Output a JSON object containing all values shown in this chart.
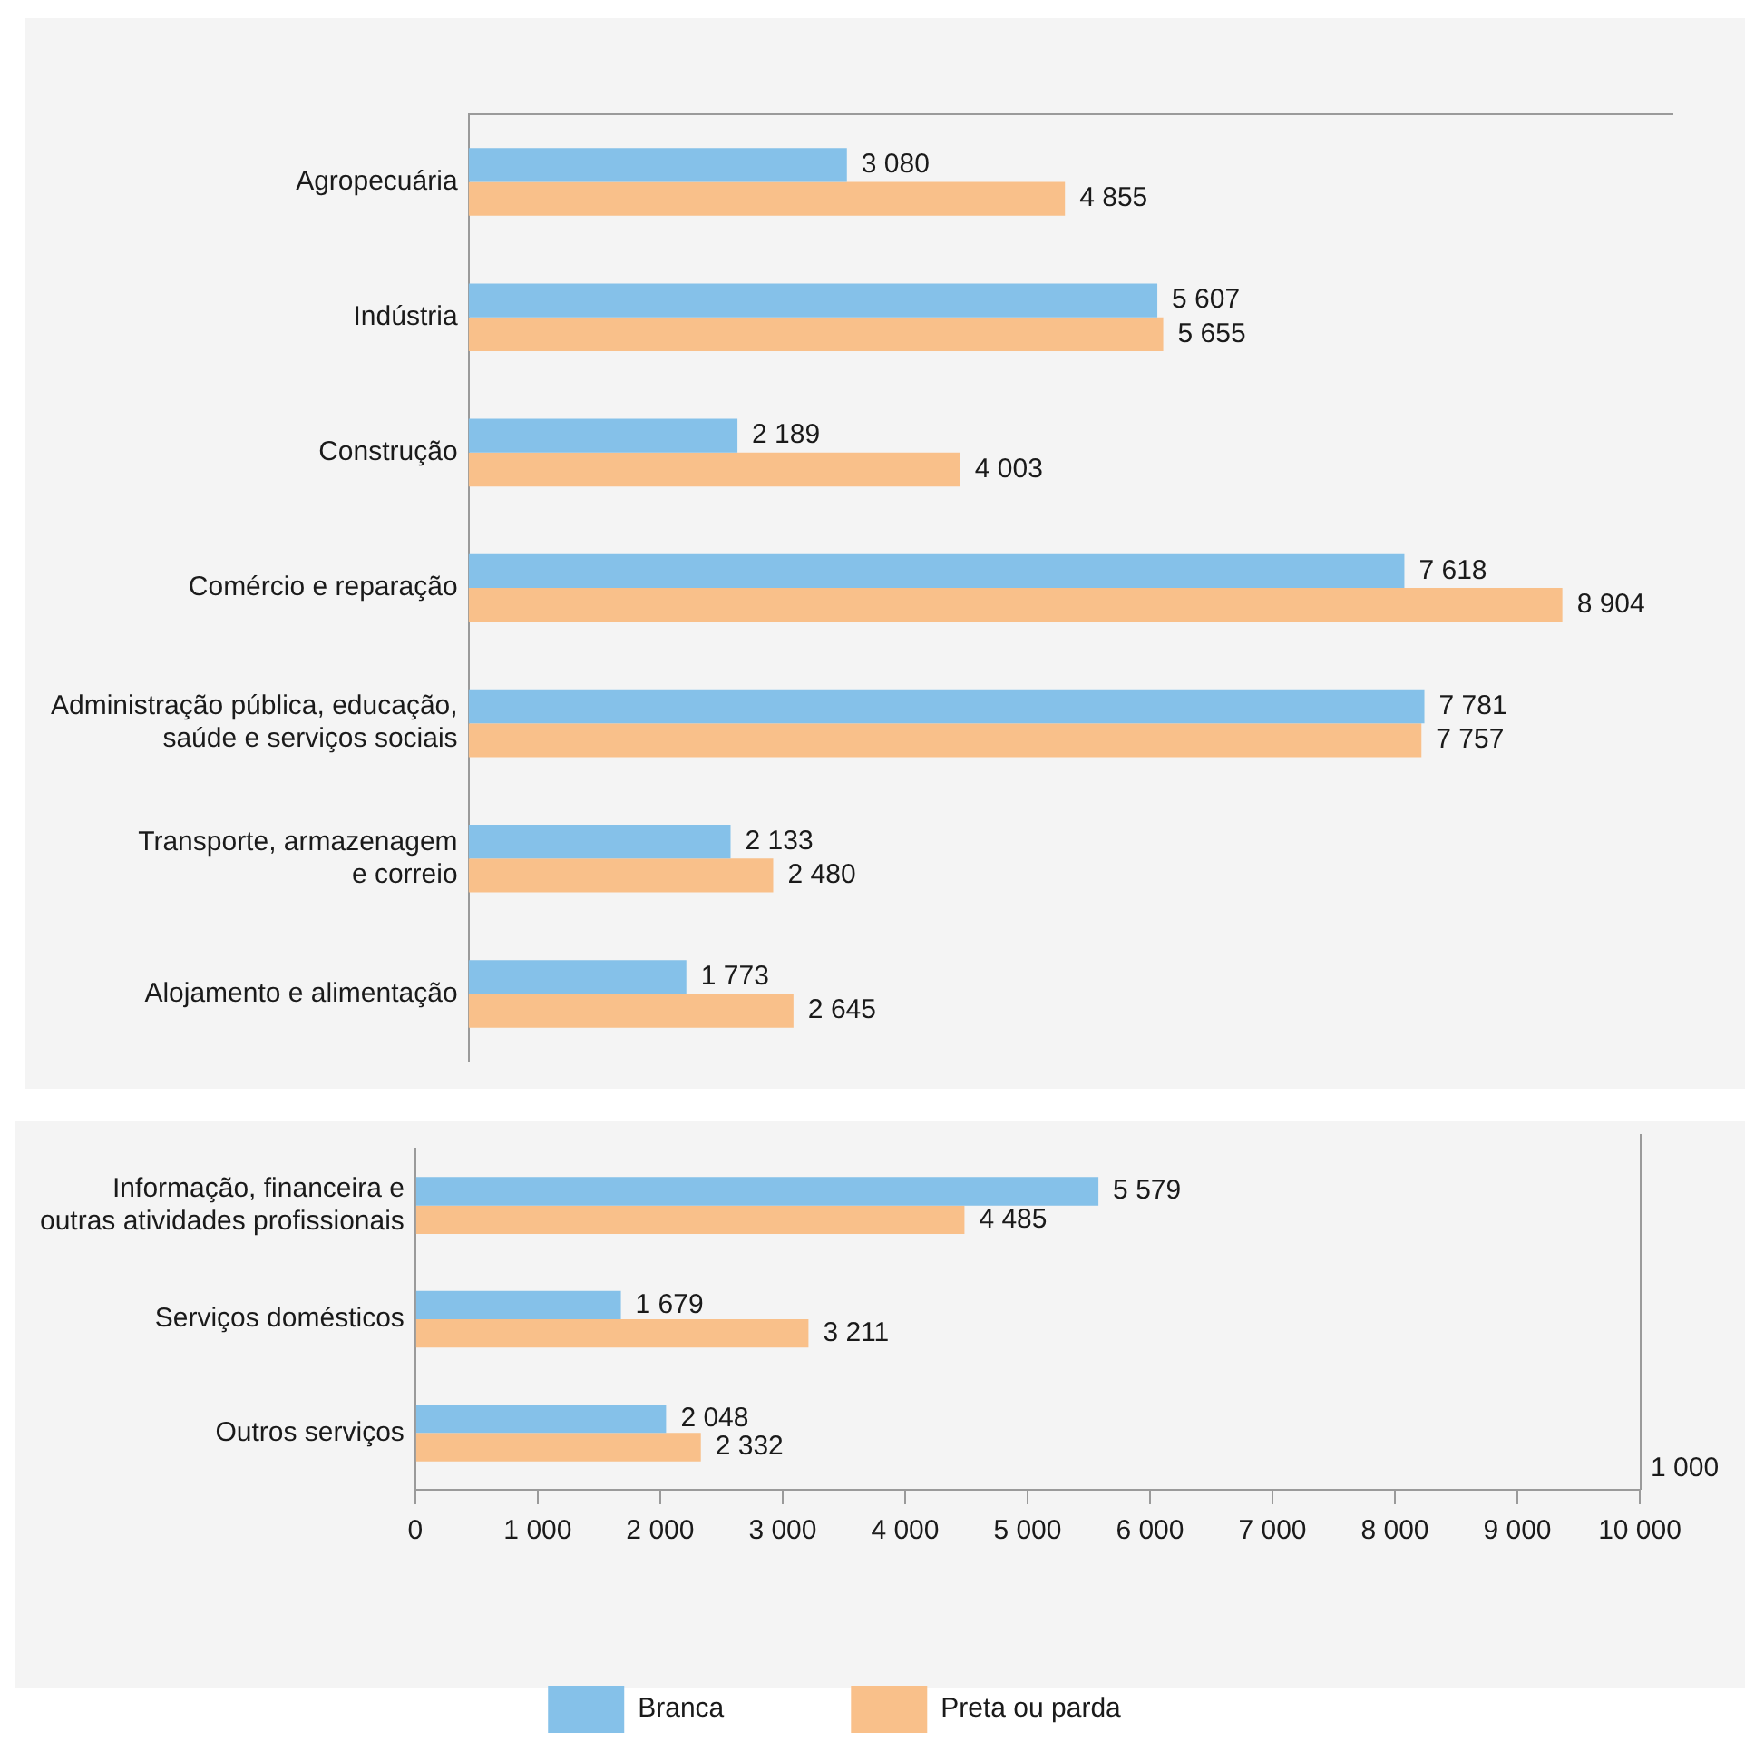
{
  "chart_data": [
    {
      "type": "bar",
      "orientation": "horizontal",
      "categories": [
        "Agropecuária",
        "Indústria",
        "Construção",
        "Comércio e reparação",
        "Administração pública, educação,\nsaúde e serviços sociais",
        "Transporte, armazenagem\ne correio",
        "Alojamento e alimentação"
      ],
      "series": [
        {
          "color": "#85c1e9",
          "values": [
            3080,
            5607,
            2189,
            7618,
            7781,
            2133,
            1773
          ],
          "value_labels": [
            "3 080",
            "5 607",
            "2 189",
            "7 618",
            "7 781",
            "2 133",
            "1 773"
          ]
        },
        {
          "color": "#f9c08a",
          "values": [
            4855,
            5655,
            4003,
            8904,
            7757,
            2480,
            2645
          ],
          "value_labels": [
            "4 855",
            "5 655",
            "4 003",
            "8 904",
            "7 757",
            "2 480",
            "2 645"
          ]
        }
      ],
      "xlim": [
        0,
        9800
      ],
      "tick_labels": "y",
      "grid": false,
      "legend": false
    },
    {
      "type": "bar",
      "orientation": "horizontal",
      "categories": [
        "Informação, financeira e\noutras atividades profissionais",
        "Serviços domésticos",
        "Outros serviços"
      ],
      "series": [
        {
          "name": "Branca",
          "color": "#85c1e9",
          "values": [
            5579,
            1679,
            2048
          ],
          "value_labels": [
            "5 579",
            "1 679",
            "2 048"
          ]
        },
        {
          "name": "Preta ou parda",
          "color": "#f9c08a",
          "values": [
            4485,
            3211,
            2332
          ],
          "value_labels": [
            "4 485",
            "3 211",
            "2 332"
          ]
        }
      ],
      "xlim": [
        0,
        10000
      ],
      "xticks": [
        0,
        {
          "value": 1000,
          "label": "1 000"
        },
        {
          "value": 2000,
          "label": "2 000"
        },
        {
          "value": 3000,
          "label": "3 000"
        },
        {
          "value": 4000,
          "label": "4 000"
        },
        {
          "value": 5000,
          "label": "5 000"
        },
        {
          "value": 6000,
          "label": "6 000"
        },
        {
          "value": 7000,
          "label": "7 000"
        },
        {
          "value": 8000,
          "label": "8 000"
        },
        {
          "value": 9000,
          "label": "9 000"
        },
        {
          "value": 10000,
          "label": "10 000"
        }
      ],
      "annotations": [
        "1 000"
      ],
      "grid": false,
      "legend": "bottom"
    }
  ]
}
